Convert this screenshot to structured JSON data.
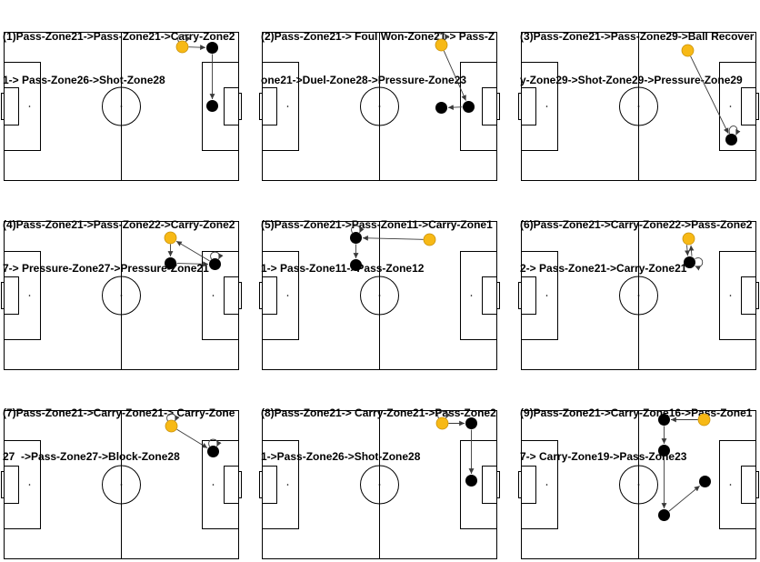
{
  "panels": [
    {
      "title_line_1": "(1)Pass-Zone21->Pass-Zone21->Carry-Zone2",
      "title_line_2": "1-> Pass-Zone26->Shot-Zone28"
    },
    {
      "title_line_1": "(2)Pass-Zone21-> Foul Won-Zone21-> Pass-Z",
      "title_line_2": "one21->Duel-Zone28->Pressure-Zone23"
    },
    {
      "title_line_1": "(3)Pass-Zone21->Pass-Zone29->Ball Recover",
      "title_line_2": "y-Zone29->Shot-Zone29->Pressure-Zone29"
    },
    {
      "title_line_1": "(4)Pass-Zone21->Pass-Zone22->Carry-Zone2",
      "title_line_2": "7-> Pressure-Zone27->Pressure-Zone21"
    },
    {
      "title_line_1": "(5)Pass-Zone21->Pass-Zone11->Carry-Zone1",
      "title_line_2": "1-> Pass-Zone11->Pass-Zone12"
    },
    {
      "title_line_1": "(6)Pass-Zone21->Carry-Zone22->Pass-Zone2",
      "title_line_2": "2-> Pass-Zone21->Carry-Zone21"
    },
    {
      "title_line_1": "(7)Pass-Zone21->Carry-Zone21-> Carry-Zone",
      "title_line_2": "27  ->Pass-Zone27->Block-Zone28"
    },
    {
      "title_line_1": "(8)Pass-Zone21-> Carry-Zone21->Pass-Zone2",
      "title_line_2": "1->Pass-Zone26->Shot-Zone28"
    },
    {
      "title_line_1": "(9)Pass-Zone21->Carry-Zone16->Pass-Zone1",
      "title_line_2": "7-> Carry-Zone19->Pass-Zone23"
    }
  ],
  "colors": {
    "start_node": "#f7b916",
    "start_node_outline": "#c9920c",
    "event_node": "#000000",
    "pitch_lines": "#000000",
    "arrows": "#3a3a3a",
    "background": "#ffffff"
  }
}
